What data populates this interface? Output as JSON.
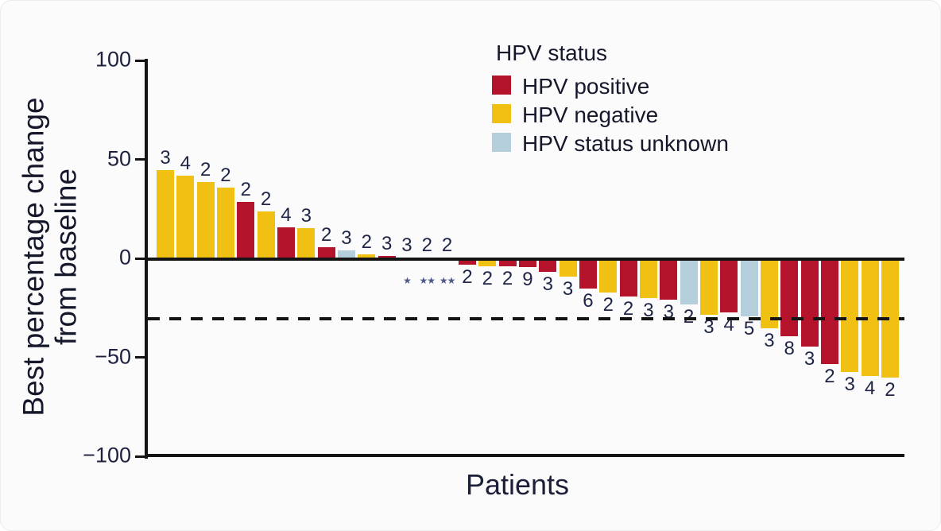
{
  "colors": {
    "positive": "#b5122b",
    "negative": "#f0c013",
    "unknown": "#b4cfdb",
    "axis": "#141414",
    "text": "#1c2140",
    "star": "#4f5a88",
    "background": "#fbfbfc"
  },
  "chart_data": {
    "type": "bar",
    "title": "",
    "xlabel": "Patients",
    "ylabel": "Best percentage change from baseline",
    "ylabel_line1": "Best percentage change",
    "ylabel_line2": "from baseline",
    "ylim": [
      -100,
      100
    ],
    "grid": false,
    "reference_line_y": -30,
    "yticks": [
      {
        "value": 100,
        "label": "100"
      },
      {
        "value": 50,
        "label": "50"
      },
      {
        "value": 0,
        "label": "0"
      },
      {
        "value": -50,
        "label": "−50"
      },
      {
        "value": -100,
        "label": "−100"
      }
    ],
    "legend": {
      "title": "HPV status",
      "position": "top-center",
      "items": [
        {
          "key": "positive",
          "label": "HPV positive"
        },
        {
          "key": "negative",
          "label": "HPV negative"
        },
        {
          "key": "unknown",
          "label": "HPV status unknown"
        }
      ]
    },
    "bars": [
      {
        "value": 45,
        "group": "negative",
        "count": "3"
      },
      {
        "value": 42,
        "group": "negative",
        "count": "4"
      },
      {
        "value": 39,
        "group": "negative",
        "count": "2"
      },
      {
        "value": 36,
        "group": "negative",
        "count": "2"
      },
      {
        "value": 29,
        "group": "positive",
        "count": "2"
      },
      {
        "value": 24,
        "group": "negative",
        "count": "2"
      },
      {
        "value": 16,
        "group": "positive",
        "count": "4"
      },
      {
        "value": 15.5,
        "group": "negative",
        "count": "3"
      },
      {
        "value": 6,
        "group": "positive",
        "count": "2"
      },
      {
        "value": 4.5,
        "group": "unknown",
        "count": "3"
      },
      {
        "value": 2.5,
        "group": "negative",
        "count": "2"
      },
      {
        "value": 1.5,
        "group": "positive",
        "count": "3"
      },
      {
        "value": 0,
        "group": "none",
        "count": "3",
        "marker": "★"
      },
      {
        "value": 0,
        "group": "none",
        "count": "2",
        "marker": "★★"
      },
      {
        "value": 0,
        "group": "none",
        "count": "2",
        "marker": "★★"
      },
      {
        "value": -3,
        "group": "positive",
        "count": "2"
      },
      {
        "value": -3.5,
        "group": "negative",
        "count": "2"
      },
      {
        "value": -3.5,
        "group": "positive",
        "count": "2"
      },
      {
        "value": -4,
        "group": "positive",
        "count": "9"
      },
      {
        "value": -6.5,
        "group": "positive",
        "count": "3"
      },
      {
        "value": -9,
        "group": "negative",
        "count": "3"
      },
      {
        "value": -15,
        "group": "positive",
        "count": "6"
      },
      {
        "value": -17,
        "group": "negative",
        "count": "2"
      },
      {
        "value": -19,
        "group": "positive",
        "count": "2"
      },
      {
        "value": -19.5,
        "group": "negative",
        "count": "3"
      },
      {
        "value": -20.5,
        "group": "positive",
        "count": "3"
      },
      {
        "value": -23,
        "group": "unknown",
        "count": "2"
      },
      {
        "value": -28,
        "group": "negative",
        "count": "3"
      },
      {
        "value": -27,
        "group": "positive",
        "count": "4"
      },
      {
        "value": -29,
        "group": "unknown",
        "count": "5"
      },
      {
        "value": -35,
        "group": "negative",
        "count": "3"
      },
      {
        "value": -39,
        "group": "positive",
        "count": "8"
      },
      {
        "value": -44,
        "group": "positive",
        "count": "3"
      },
      {
        "value": -53,
        "group": "positive",
        "count": "2"
      },
      {
        "value": -57,
        "group": "negative",
        "count": "3"
      },
      {
        "value": -59,
        "group": "negative",
        "count": "4"
      },
      {
        "value": -60,
        "group": "negative",
        "count": "2"
      }
    ]
  }
}
